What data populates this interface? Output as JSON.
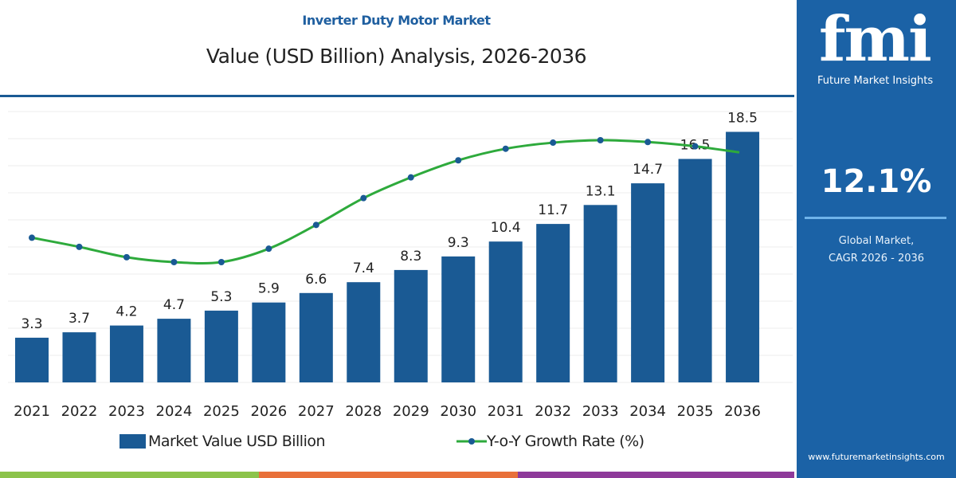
{
  "header": {
    "title": "Inverter Duty Motor Market",
    "subtitle": "Value (USD Billion) Analysis, 2026-2036"
  },
  "panel": {
    "logo": "fmi",
    "logo_subtitle": "Future Market Insights",
    "cagr_value": "12.1%",
    "cagr_label_1": "Global Market,",
    "cagr_label_2": "CAGR 2026 - 2036",
    "url": "www.futuremarketinsights.com"
  },
  "colors": {
    "bar": "#1a5a94",
    "line": "#2eaa3c",
    "marker": "#1a5a94",
    "panel": "#1b62a6",
    "stripes": [
      "#8cc34b",
      "#e8703a",
      "#8e3a9a"
    ]
  },
  "chart_data": {
    "type": "bar+line",
    "categories": [
      "2021",
      "2022",
      "2023",
      "2024",
      "2025",
      "2026",
      "2027",
      "2028",
      "2029",
      "2030",
      "2031",
      "2032",
      "2033",
      "2034",
      "2035",
      "2036"
    ],
    "series": [
      {
        "name": "Market Value USD Billion",
        "type": "bar",
        "values": [
          3.3,
          3.7,
          4.2,
          4.7,
          5.3,
          5.9,
          6.6,
          7.4,
          8.3,
          9.3,
          10.4,
          11.7,
          13.1,
          14.7,
          16.5,
          18.5
        ],
        "labels": [
          "3.3",
          "3.7",
          "4.2",
          "4.7",
          "5.3",
          "5.9",
          "6.6",
          "7.4",
          "8.3",
          "9.3",
          "10.4",
          "11.7",
          "13.1",
          "14.7",
          "16.5",
          "18.5"
        ]
      },
      {
        "name": "Y-o-Y Growth Rate (%)",
        "type": "line",
        "values": [
          11.4,
          11.25,
          11.08,
          11.0,
          11.0,
          11.22,
          11.61,
          12.05,
          12.39,
          12.67,
          12.86,
          12.96,
          13.0,
          12.97,
          12.9,
          12.8
        ]
      }
    ],
    "ylim": [
      0,
      20
    ],
    "grid": true,
    "legend": "bottom"
  }
}
